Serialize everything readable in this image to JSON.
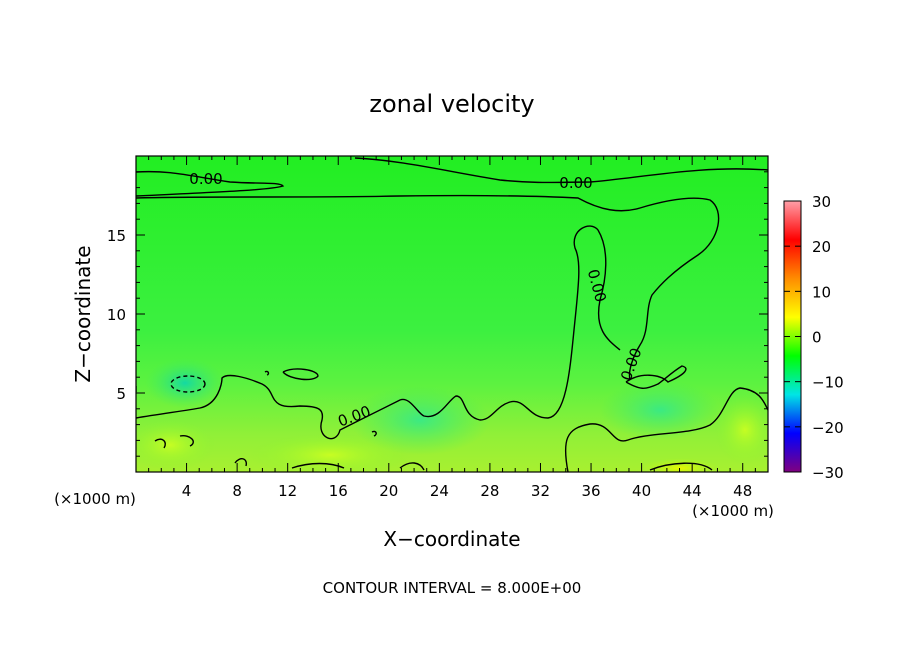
{
  "chart_data": {
    "type": "heatmap",
    "title": "zonal velocity",
    "xlabel": "X−coordinate",
    "ylabel": "Z−coordinate",
    "x_unit_label": "(×1000 m)",
    "y_unit_label": "(×1000 m)",
    "xlim": [
      0,
      50
    ],
    "ylim": [
      0,
      20
    ],
    "x_ticks": [
      4,
      8,
      12,
      16,
      20,
      24,
      28,
      32,
      36,
      40,
      44,
      48
    ],
    "y_ticks": [
      5,
      10,
      15
    ],
    "colorbar": {
      "range": [
        -30,
        30
      ],
      "ticks": [
        30,
        20,
        10,
        0,
        -10,
        -20,
        -30
      ],
      "tick_labels": [
        "30",
        "20",
        "10",
        "0",
        "−10",
        "−20",
        "−30"
      ],
      "colors": [
        "#ff9fa8",
        "#ff0000",
        "#ff8c00",
        "#ffff00",
        "#00ff00",
        "#00e5e5",
        "#0000ff",
        "#800080"
      ]
    },
    "contour_interval_text": "CONTOUR INTERVAL = 8.000E+00",
    "contour_labels": [
      "0.00",
      "0.00",
      "0.00",
      "0.00",
      "0.00"
    ],
    "field_regions": [
      {
        "name": "upper-green",
        "x": [
          0,
          50
        ],
        "z": [
          5,
          20
        ],
        "value": 2
      },
      {
        "name": "lower-yellow-green",
        "x": [
          0,
          50
        ],
        "z": [
          0,
          5
        ],
        "value": 6
      },
      {
        "name": "cyan-pocket-left",
        "x": [
          3,
          5.5
        ],
        "z": [
          5,
          6.5
        ],
        "value": -8
      },
      {
        "name": "cyan-patch-mid",
        "x": [
          20,
          32
        ],
        "z": [
          2,
          6
        ],
        "value": -3
      },
      {
        "name": "yellow-patch-right",
        "x": [
          42,
          45
        ],
        "z": [
          0,
          1
        ],
        "value": 10
      }
    ],
    "grid": false
  }
}
